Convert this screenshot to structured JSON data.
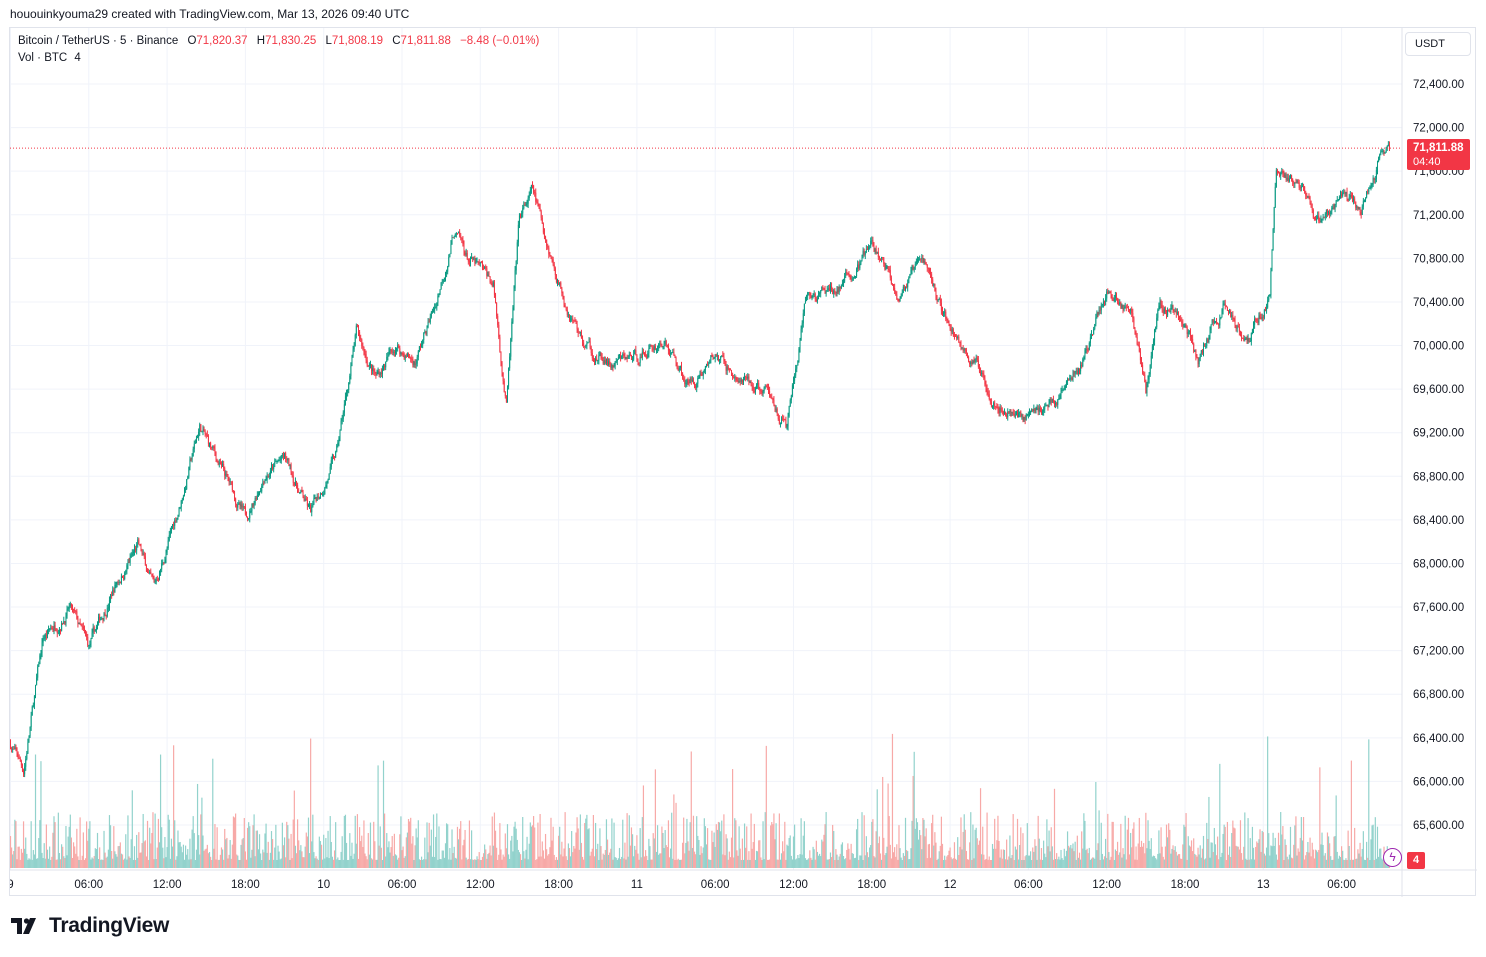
{
  "header": {
    "text": "hououinkyouma29 created with TradingView.com, Mar 13, 2026 09:40 UTC"
  },
  "legend": {
    "symbol": "Bitcoin / TetherUS · 5 · Binance",
    "o_label": "O",
    "o_value": "71,820.37",
    "h_label": "H",
    "h_value": "71,830.25",
    "l_label": "L",
    "l_value": "71,808.19",
    "c_label": "C",
    "c_value": "71,811.88",
    "change": "−8.48 (−0.01%)"
  },
  "volume_legend": {
    "label": "Vol · BTC",
    "value": "4"
  },
  "currency": "USDT",
  "last_price": {
    "price": "71,811.88",
    "countdown": "04:40"
  },
  "volume_tag": "4",
  "brand": {
    "name": "TradingView"
  },
  "colors": {
    "up": "#089981",
    "down": "#f23645",
    "vol_up": "#92d2cc",
    "vol_down": "#f7a9a7",
    "grid": "#f0f3fa"
  },
  "chart_data": {
    "type": "candlestick",
    "title": "Bitcoin / TetherUS · 5 · Binance",
    "interval": "5",
    "ylabel": "USDT",
    "ylim": [
      65200,
      72800
    ],
    "y_ticks": [
      "72,400.00",
      "72,000.00",
      "71,600.00",
      "71,200.00",
      "70,800.00",
      "70,400.00",
      "70,000.00",
      "69,600.00",
      "69,200.00",
      "68,800.00",
      "68,400.00",
      "68,000.00",
      "67,600.00",
      "67,200.00",
      "66,800.00",
      "66,400.00",
      "66,000.00",
      "65,600.00"
    ],
    "x_ticks": [
      "9",
      "06:00",
      "12:00",
      "18:00",
      "10",
      "06:00",
      "12:00",
      "18:00",
      "11",
      "06:00",
      "12:00",
      "18:00",
      "12",
      "06:00",
      "12:00",
      "18:00",
      "13",
      "06:00"
    ],
    "grid": true,
    "series": [
      {
        "name": "Close",
        "anchors": [
          {
            "t": "9 00:00",
            "v": 66350
          },
          {
            "t": "9 01:00",
            "v": 66100
          },
          {
            "t": "9 02:30",
            "v": 67300
          },
          {
            "t": "9 04:30",
            "v": 67600
          },
          {
            "t": "9 06:00",
            "v": 67200
          },
          {
            "t": "9 08:00",
            "v": 67800
          },
          {
            "t": "9 09:45",
            "v": 68150
          },
          {
            "t": "9 11:00",
            "v": 67750
          },
          {
            "t": "9 13:00",
            "v": 68550
          },
          {
            "t": "9 14:30",
            "v": 69250
          },
          {
            "t": "9 16:00",
            "v": 68900
          },
          {
            "t": "9 18:00",
            "v": 68400
          },
          {
            "t": "9 19:30",
            "v": 68850
          },
          {
            "t": "9 21:00",
            "v": 68950
          },
          {
            "t": "9 23:00",
            "v": 68450
          },
          {
            "t": "10 01:00",
            "v": 69000
          },
          {
            "t": "10 02:30",
            "v": 70100
          },
          {
            "t": "10 04:00",
            "v": 69700
          },
          {
            "t": "10 05:30",
            "v": 70000
          },
          {
            "t": "10 07:00",
            "v": 69850
          },
          {
            "t": "10 08:30",
            "v": 70350
          },
          {
            "t": "10 10:00",
            "v": 71050
          },
          {
            "t": "10 11:00",
            "v": 70800
          },
          {
            "t": "10 13:00",
            "v": 70550
          },
          {
            "t": "10 14:00",
            "v": 69450
          },
          {
            "t": "10 15:00",
            "v": 71150
          },
          {
            "t": "10 16:00",
            "v": 71400
          },
          {
            "t": "10 18:00",
            "v": 70600
          },
          {
            "t": "10 20:00",
            "v": 70000
          },
          {
            "t": "10 22:00",
            "v": 69800
          },
          {
            "t": "11 00:00",
            "v": 69900
          },
          {
            "t": "11 02:00",
            "v": 70050
          },
          {
            "t": "11 04:00",
            "v": 69650
          },
          {
            "t": "11 06:00",
            "v": 69900
          },
          {
            "t": "11 08:00",
            "v": 69650
          },
          {
            "t": "11 10:00",
            "v": 69550
          },
          {
            "t": "11 11:30",
            "v": 69250
          },
          {
            "t": "11 13:00",
            "v": 70400
          },
          {
            "t": "11 15:00",
            "v": 70500
          },
          {
            "t": "11 16:30",
            "v": 70650
          },
          {
            "t": "11 18:00",
            "v": 70900
          },
          {
            "t": "11 20:00",
            "v": 70500
          },
          {
            "t": "11 22:00",
            "v": 70750
          },
          {
            "t": "12 00:00",
            "v": 70150
          },
          {
            "t": "12 02:00",
            "v": 69800
          },
          {
            "t": "12 04:00",
            "v": 69450
          },
          {
            "t": "12 06:00",
            "v": 69350
          },
          {
            "t": "12 08:00",
            "v": 69500
          },
          {
            "t": "12 10:00",
            "v": 69800
          },
          {
            "t": "12 12:00",
            "v": 70500
          },
          {
            "t": "12 14:00",
            "v": 70300
          },
          {
            "t": "12 15:00",
            "v": 69600
          },
          {
            "t": "12 16:00",
            "v": 70400
          },
          {
            "t": "12 18:00",
            "v": 70250
          },
          {
            "t": "12 19:00",
            "v": 69850
          },
          {
            "t": "12 21:00",
            "v": 70350
          },
          {
            "t": "12 23:00",
            "v": 70100
          },
          {
            "t": "13 00:30",
            "v": 70500
          },
          {
            "t": "13 01:00",
            "v": 71600
          },
          {
            "t": "13 02:30",
            "v": 71500
          },
          {
            "t": "13 04:00",
            "v": 71100
          },
          {
            "t": "13 06:00",
            "v": 71350
          },
          {
            "t": "13 07:30",
            "v": 71250
          },
          {
            "t": "13 08:30",
            "v": 71550
          },
          {
            "t": "13 09:00",
            "v": 71820
          },
          {
            "t": "13 09:40",
            "v": 71811.88
          }
        ]
      }
    ]
  }
}
